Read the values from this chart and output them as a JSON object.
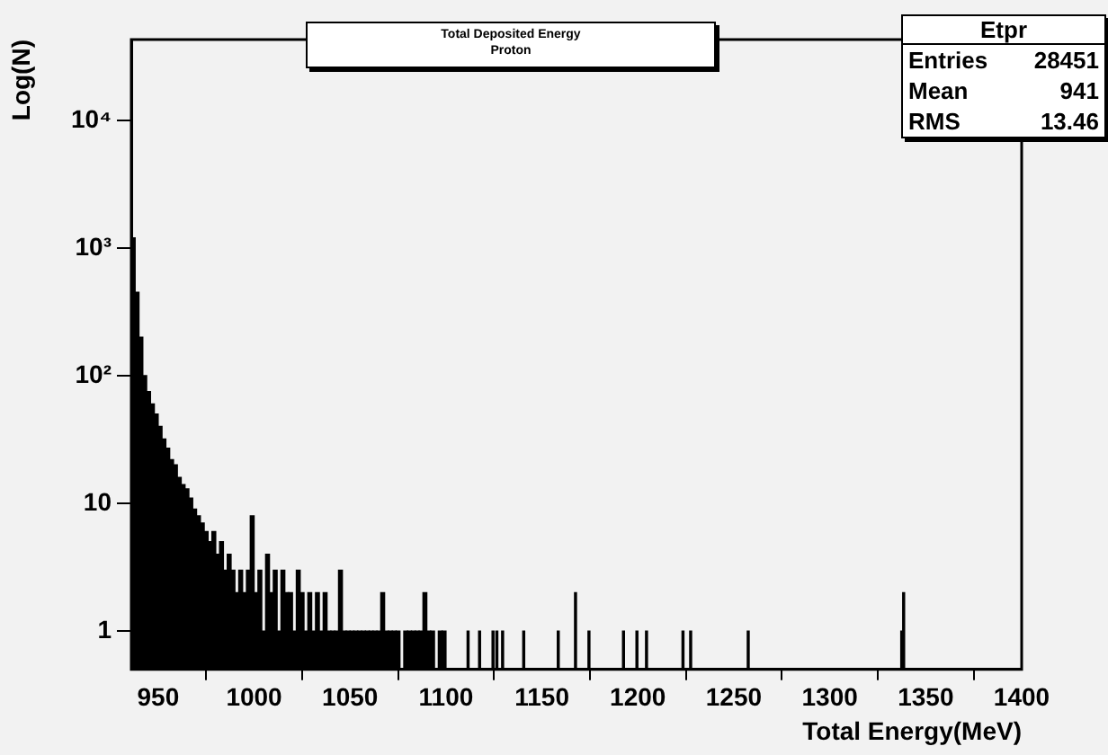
{
  "chart_data": {
    "type": "histogram",
    "title": "Total Deposited Energy",
    "subtitle": "Proton",
    "xlabel": "Total Energy(MeV)",
    "ylabel": "Log(N)",
    "annotations": [
      "Etpr",
      "Entries 28451",
      "Mean 941",
      "RMS 13.46"
    ],
    "bins": [
      936,
      938,
      940,
      942,
      944,
      946,
      948,
      950,
      952,
      954,
      956,
      958,
      960,
      962,
      964,
      966,
      968,
      970,
      972,
      974,
      976,
      978,
      980,
      982,
      984,
      986,
      988,
      990,
      992,
      994,
      996,
      998,
      1000,
      1002,
      1004,
      1006,
      1008,
      1010,
      1012,
      1014,
      1016,
      1018,
      1020,
      1022,
      1024,
      1026,
      1028,
      1030,
      1032,
      1034,
      1036,
      1038,
      1040,
      1042,
      1044,
      1046,
      1048,
      1050,
      1052,
      1054,
      1056,
      1058,
      1060,
      1062,
      1064,
      1066,
      1068,
      1070,
      1072,
      1074,
      1076,
      1078,
      1080,
      1082,
      1084,
      1086,
      1088,
      1090,
      1092,
      1094,
      1096,
      1098,
      1100,
      1111,
      1112,
      1117,
      1118,
      1124,
      1125,
      1126,
      1127,
      1129,
      1130,
      1140,
      1141,
      1158,
      1159,
      1167,
      1168,
      1174,
      1175,
      1192,
      1193,
      1199,
      1200,
      1204,
      1205,
      1223,
      1224,
      1227,
      1228,
      1257,
      1258,
      1337,
      1338,
      1339
    ],
    "values": [
      1200,
      450,
      200,
      100,
      75,
      60,
      50,
      40,
      32,
      27,
      22,
      20,
      16,
      14,
      13,
      11,
      9,
      8,
      7,
      6,
      5,
      6,
      4,
      5,
      3,
      4,
      3,
      2,
      3,
      2,
      3,
      8,
      2,
      3,
      1,
      4,
      2,
      3,
      1,
      3,
      2,
      2,
      1,
      3,
      2,
      1,
      2,
      1,
      2,
      1,
      2,
      1,
      1,
      1,
      3,
      1,
      1,
      1,
      1,
      1,
      1,
      1,
      1,
      1,
      1,
      2,
      1,
      1,
      1,
      1,
      null,
      1,
      1,
      1,
      1,
      1,
      2,
      1,
      1,
      null,
      1,
      1,
      null,
      1,
      null,
      1,
      null,
      1,
      null,
      1,
      null,
      1,
      null,
      1,
      null,
      1,
      null,
      2,
      null,
      1,
      null,
      1,
      null,
      1,
      null,
      1,
      null,
      1,
      null,
      1,
      null,
      1,
      null,
      1,
      2
    ],
    "color": "#000000",
    "log": "y",
    "grid": false,
    "legend": false,
    "xlim": [
      936,
      1400
    ],
    "xticks": [
      950,
      1000,
      1050,
      1100,
      1150,
      1200,
      1250,
      1300,
      1350,
      1400
    ],
    "ylim": [
      0.5,
      43000
    ],
    "yticks": [
      1,
      10,
      {
        "value": 100,
        "label": "10²"
      },
      {
        "value": 1000,
        "label": "10³"
      },
      {
        "value": 10000,
        "label": "10⁴"
      }
    ]
  }
}
